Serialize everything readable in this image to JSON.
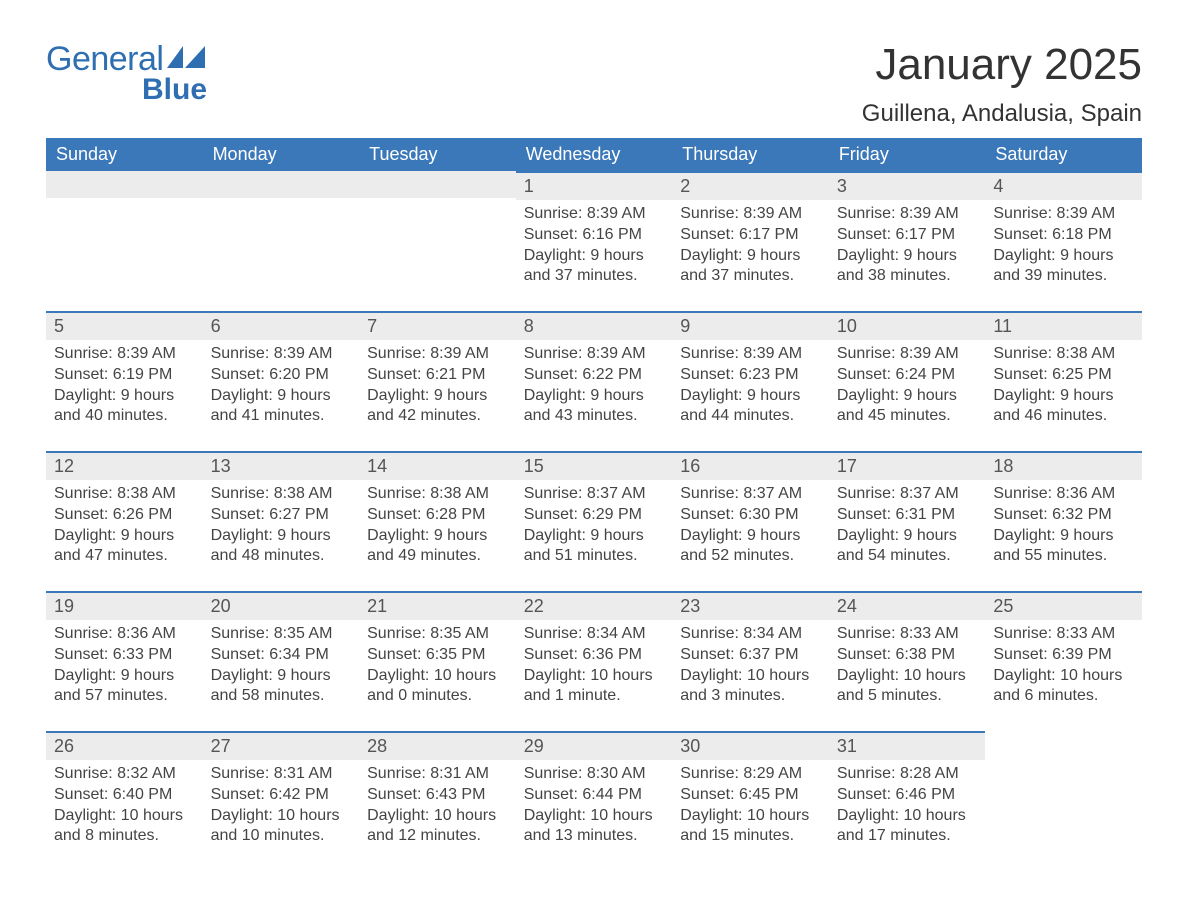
{
  "brand": {
    "word1": "General",
    "word2": "Blue"
  },
  "title": {
    "month_year": "January 2025",
    "location": "Guillena, Andalusia, Spain"
  },
  "colors": {
    "brand_blue": "#3b78b9",
    "logo_text": "#2f6fb1",
    "header_text": "#ffffff",
    "daynum_bg": "#ececec",
    "body_text": "#444444",
    "background": "#ffffff"
  },
  "weekdays": [
    "Sunday",
    "Monday",
    "Tuesday",
    "Wednesday",
    "Thursday",
    "Friday",
    "Saturday"
  ],
  "layout": {
    "columns": 7,
    "rows": 5,
    "first_day_column_index": 3
  },
  "days": [
    {
      "n": 1,
      "sunrise": "8:39 AM",
      "sunset": "6:16 PM",
      "daylight": "9 hours and 37 minutes."
    },
    {
      "n": 2,
      "sunrise": "8:39 AM",
      "sunset": "6:17 PM",
      "daylight": "9 hours and 37 minutes."
    },
    {
      "n": 3,
      "sunrise": "8:39 AM",
      "sunset": "6:17 PM",
      "daylight": "9 hours and 38 minutes."
    },
    {
      "n": 4,
      "sunrise": "8:39 AM",
      "sunset": "6:18 PM",
      "daylight": "9 hours and 39 minutes."
    },
    {
      "n": 5,
      "sunrise": "8:39 AM",
      "sunset": "6:19 PM",
      "daylight": "9 hours and 40 minutes."
    },
    {
      "n": 6,
      "sunrise": "8:39 AM",
      "sunset": "6:20 PM",
      "daylight": "9 hours and 41 minutes."
    },
    {
      "n": 7,
      "sunrise": "8:39 AM",
      "sunset": "6:21 PM",
      "daylight": "9 hours and 42 minutes."
    },
    {
      "n": 8,
      "sunrise": "8:39 AM",
      "sunset": "6:22 PM",
      "daylight": "9 hours and 43 minutes."
    },
    {
      "n": 9,
      "sunrise": "8:39 AM",
      "sunset": "6:23 PM",
      "daylight": "9 hours and 44 minutes."
    },
    {
      "n": 10,
      "sunrise": "8:39 AM",
      "sunset": "6:24 PM",
      "daylight": "9 hours and 45 minutes."
    },
    {
      "n": 11,
      "sunrise": "8:38 AM",
      "sunset": "6:25 PM",
      "daylight": "9 hours and 46 minutes."
    },
    {
      "n": 12,
      "sunrise": "8:38 AM",
      "sunset": "6:26 PM",
      "daylight": "9 hours and 47 minutes."
    },
    {
      "n": 13,
      "sunrise": "8:38 AM",
      "sunset": "6:27 PM",
      "daylight": "9 hours and 48 minutes."
    },
    {
      "n": 14,
      "sunrise": "8:38 AM",
      "sunset": "6:28 PM",
      "daylight": "9 hours and 49 minutes."
    },
    {
      "n": 15,
      "sunrise": "8:37 AM",
      "sunset": "6:29 PM",
      "daylight": "9 hours and 51 minutes."
    },
    {
      "n": 16,
      "sunrise": "8:37 AM",
      "sunset": "6:30 PM",
      "daylight": "9 hours and 52 minutes."
    },
    {
      "n": 17,
      "sunrise": "8:37 AM",
      "sunset": "6:31 PM",
      "daylight": "9 hours and 54 minutes."
    },
    {
      "n": 18,
      "sunrise": "8:36 AM",
      "sunset": "6:32 PM",
      "daylight": "9 hours and 55 minutes."
    },
    {
      "n": 19,
      "sunrise": "8:36 AM",
      "sunset": "6:33 PM",
      "daylight": "9 hours and 57 minutes."
    },
    {
      "n": 20,
      "sunrise": "8:35 AM",
      "sunset": "6:34 PM",
      "daylight": "9 hours and 58 minutes."
    },
    {
      "n": 21,
      "sunrise": "8:35 AM",
      "sunset": "6:35 PM",
      "daylight": "10 hours and 0 minutes."
    },
    {
      "n": 22,
      "sunrise": "8:34 AM",
      "sunset": "6:36 PM",
      "daylight": "10 hours and 1 minute."
    },
    {
      "n": 23,
      "sunrise": "8:34 AM",
      "sunset": "6:37 PM",
      "daylight": "10 hours and 3 minutes."
    },
    {
      "n": 24,
      "sunrise": "8:33 AM",
      "sunset": "6:38 PM",
      "daylight": "10 hours and 5 minutes."
    },
    {
      "n": 25,
      "sunrise": "8:33 AM",
      "sunset": "6:39 PM",
      "daylight": "10 hours and 6 minutes."
    },
    {
      "n": 26,
      "sunrise": "8:32 AM",
      "sunset": "6:40 PM",
      "daylight": "10 hours and 8 minutes."
    },
    {
      "n": 27,
      "sunrise": "8:31 AM",
      "sunset": "6:42 PM",
      "daylight": "10 hours and 10 minutes."
    },
    {
      "n": 28,
      "sunrise": "8:31 AM",
      "sunset": "6:43 PM",
      "daylight": "10 hours and 12 minutes."
    },
    {
      "n": 29,
      "sunrise": "8:30 AM",
      "sunset": "6:44 PM",
      "daylight": "10 hours and 13 minutes."
    },
    {
      "n": 30,
      "sunrise": "8:29 AM",
      "sunset": "6:45 PM",
      "daylight": "10 hours and 15 minutes."
    },
    {
      "n": 31,
      "sunrise": "8:28 AM",
      "sunset": "6:46 PM",
      "daylight": "10 hours and 17 minutes."
    }
  ],
  "labels": {
    "sunrise": "Sunrise:",
    "sunset": "Sunset:",
    "daylight": "Daylight:"
  },
  "typography": {
    "month_year_fontsize": 44,
    "location_fontsize": 24,
    "weekday_fontsize": 18,
    "daynum_fontsize": 18,
    "body_fontsize": 16
  }
}
